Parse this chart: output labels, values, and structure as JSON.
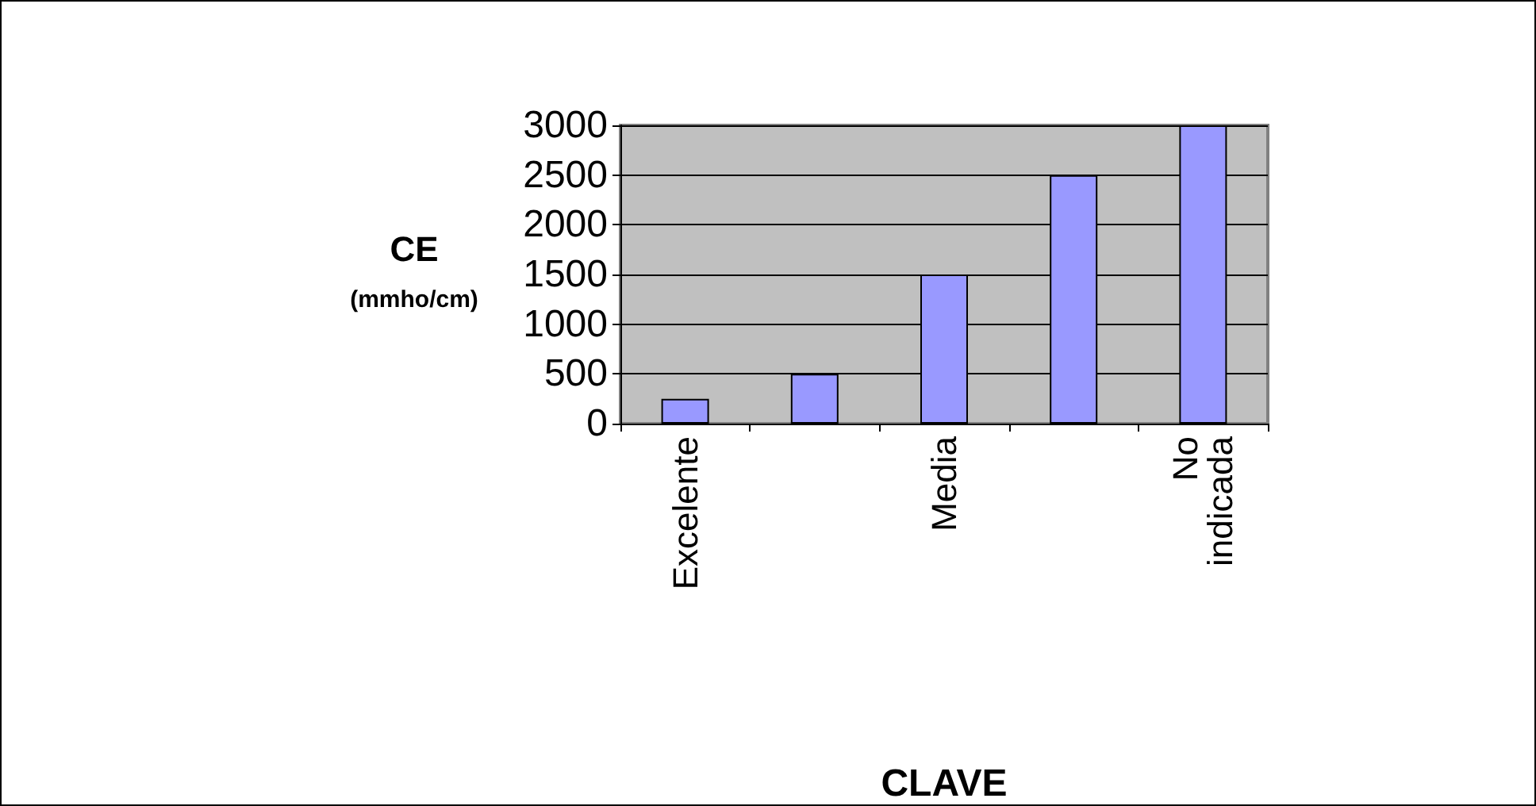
{
  "chart_data": {
    "type": "bar",
    "xlabel": "CLAVE",
    "ylabel": "CE\n(mmho/cm)",
    "categories": [
      "Excelente",
      null,
      "Media",
      null,
      "No indicada"
    ],
    "values": [
      250,
      500,
      1500,
      2500,
      3000
    ],
    "color": "#9999ff",
    "ylim": [
      0,
      3000
    ],
    "yticks": [
      0,
      500,
      1000,
      1500,
      2000,
      2500,
      3000
    ],
    "grid": "y"
  }
}
